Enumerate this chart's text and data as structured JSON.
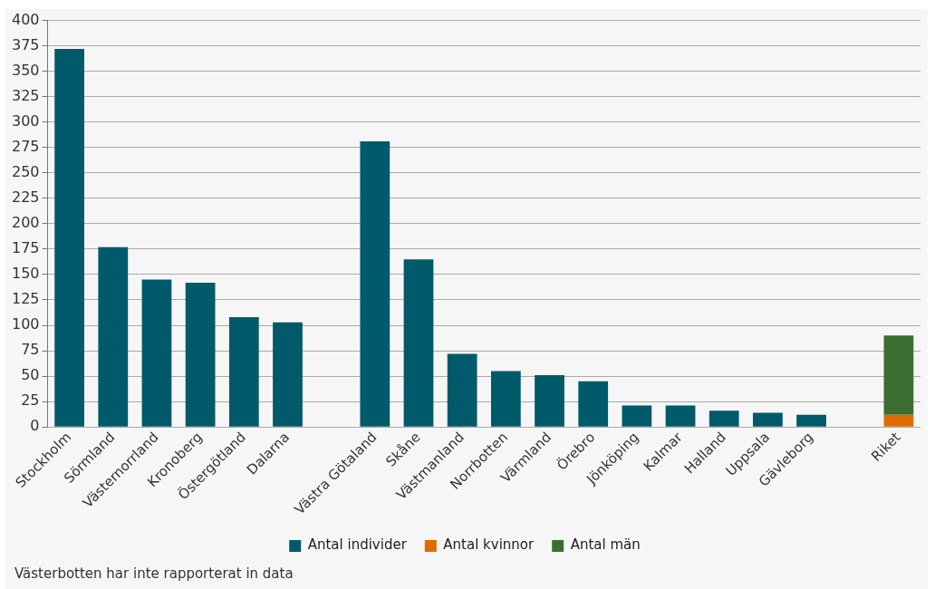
{
  "chart_data": {
    "type": "bar",
    "stacked": true,
    "categories": [
      "Stockholm",
      "Sörmland",
      "Västernorrland",
      "Kronoberg",
      "Östergötland",
      "Dalarna",
      null,
      "Västra Götaland",
      "Skåne",
      "Västmanland",
      "Norrbotten",
      "Värmland",
      "Örebro",
      "Jönköping",
      "Kalmar",
      "Halland",
      "Uppsala",
      "Gävleborg",
      null,
      "Riket"
    ],
    "series": [
      {
        "name": "Antal individer",
        "color": "#005a6a",
        "values": [
          372,
          177,
          145,
          142,
          108,
          103,
          null,
          281,
          165,
          72,
          55,
          51,
          45,
          21,
          21,
          16,
          14,
          12,
          null,
          null
        ]
      },
      {
        "name": "Antal kvinnor",
        "color": "#e06c00",
        "values": [
          null,
          null,
          null,
          null,
          null,
          null,
          null,
          null,
          null,
          null,
          null,
          null,
          null,
          null,
          null,
          null,
          null,
          null,
          null,
          12
        ]
      },
      {
        "name": "Antal män",
        "color": "#3c6e31",
        "values": [
          null,
          null,
          null,
          null,
          null,
          null,
          null,
          null,
          null,
          null,
          null,
          null,
          null,
          null,
          null,
          null,
          null,
          null,
          null,
          78
        ]
      }
    ],
    "ylim": [
      0,
      400
    ],
    "yticks": [
      0,
      25,
      50,
      75,
      100,
      125,
      150,
      175,
      200,
      225,
      250,
      275,
      300,
      325,
      350,
      375,
      400
    ],
    "grid": "y",
    "legend": "bottom",
    "annotations": [
      "Västerbotten har inte rapporterat in data"
    ]
  }
}
